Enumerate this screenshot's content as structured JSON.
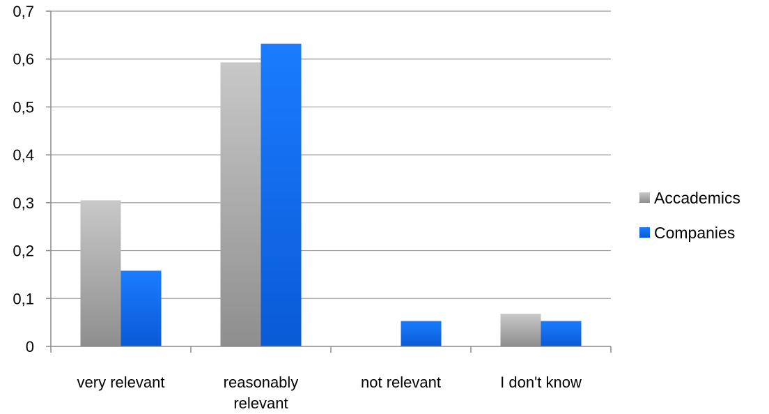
{
  "chart_data": {
    "type": "bar",
    "categories": [
      [
        "very relevant"
      ],
      [
        "reasonably",
        "relevant"
      ],
      [
        "not relevant"
      ],
      [
        "I don't know"
      ]
    ],
    "series": [
      {
        "name": "Accademics",
        "values": [
          0.305,
          0.593,
          0,
          0.068
        ],
        "color": "#9a9a9a"
      },
      {
        "name": "Companies",
        "values": [
          0.158,
          0.632,
          0.053,
          0.053
        ],
        "color": "#1a6ff0"
      }
    ],
    "y_ticks": [
      "0",
      "0,1",
      "0,2",
      "0,3",
      "0,4",
      "0,5",
      "0,6",
      "0,7"
    ],
    "ylim": [
      0,
      0.7
    ],
    "grid": true,
    "legend_position": "right"
  }
}
